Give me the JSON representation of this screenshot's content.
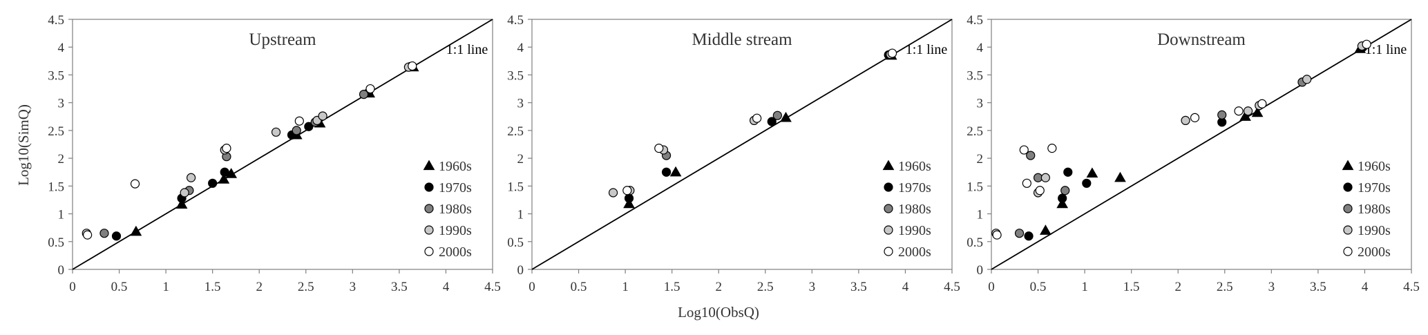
{
  "figure": {
    "xlabel": "Log10(ObsQ)",
    "ylabel": "Log10(SimQ)"
  },
  "legend": [
    {
      "label": "1960s",
      "marker": "triangle",
      "fill": "#000000"
    },
    {
      "label": "1970s",
      "marker": "circle",
      "fill": "#000000"
    },
    {
      "label": "1980s",
      "marker": "circle",
      "fill": "#808080"
    },
    {
      "label": "1990s",
      "marker": "circle",
      "fill": "#c8c8c8"
    },
    {
      "label": "2000s",
      "marker": "circle",
      "fill": "#ffffff"
    }
  ],
  "chart_data": [
    {
      "type": "scatter",
      "title": "Upstream",
      "xlim": [
        0,
        4.5
      ],
      "ylim": [
        0,
        4.5
      ],
      "xticks": [
        "0",
        "0.5",
        "1",
        "1.5",
        "2",
        "2.5",
        "3",
        "3.5",
        "4",
        "4.5"
      ],
      "yticks": [
        "0",
        "0.5",
        "1",
        "1.5",
        "2",
        "2.5",
        "3",
        "3.5",
        "4",
        "4.5"
      ],
      "reference_line": "1:1 line",
      "grid": false,
      "legend_position": "bottom-right",
      "series": [
        {
          "name": "1960s",
          "points": [
            [
              0.68,
              0.68
            ],
            [
              1.17,
              1.17
            ],
            [
              1.62,
              1.62
            ],
            [
              1.7,
              1.72
            ],
            [
              2.4,
              2.42
            ],
            [
              2.65,
              2.63
            ],
            [
              3.18,
              3.17
            ],
            [
              3.65,
              3.64
            ]
          ]
        },
        {
          "name": "1970s",
          "points": [
            [
              0.47,
              0.6
            ],
            [
              1.17,
              1.28
            ],
            [
              1.5,
              1.55
            ],
            [
              1.63,
              1.75
            ],
            [
              2.35,
              2.42
            ],
            [
              2.53,
              2.57
            ],
            [
              3.17,
              3.18
            ]
          ]
        },
        {
          "name": "1980s",
          "points": [
            [
              0.34,
              0.65
            ],
            [
              1.25,
              1.42
            ],
            [
              1.65,
              2.03
            ],
            [
              2.4,
              2.5
            ],
            [
              2.6,
              2.65
            ],
            [
              3.12,
              3.15
            ],
            [
              3.62,
              3.65
            ]
          ]
        },
        {
          "name": "1990s",
          "points": [
            [
              0.15,
              0.65
            ],
            [
              1.2,
              1.38
            ],
            [
              1.27,
              1.65
            ],
            [
              1.63,
              2.15
            ],
            [
              2.18,
              2.47
            ],
            [
              2.62,
              2.68
            ],
            [
              2.68,
              2.76
            ],
            [
              3.6,
              3.64
            ]
          ]
        },
        {
          "name": "2000s",
          "points": [
            [
              0.16,
              0.62
            ],
            [
              0.67,
              1.54
            ],
            [
              1.65,
              2.18
            ],
            [
              2.43,
              2.67
            ],
            [
              3.19,
              3.25
            ],
            [
              3.64,
              3.66
            ]
          ]
        }
      ]
    },
    {
      "type": "scatter",
      "title": "Middle stream",
      "xlim": [
        0,
        4.5
      ],
      "ylim": [
        0,
        4.5
      ],
      "xticks": [
        "0",
        "0.5",
        "1",
        "1.5",
        "2",
        "2.5",
        "3",
        "3.5",
        "4",
        "4.5"
      ],
      "yticks": [
        "0",
        "0.5",
        "1",
        "1.5",
        "2",
        "2.5",
        "3",
        "3.5",
        "4",
        "4.5"
      ],
      "reference_line": "1:1 line",
      "grid": false,
      "legend_position": "bottom-right",
      "series": [
        {
          "name": "1960s",
          "points": [
            [
              1.04,
              1.18
            ],
            [
              1.54,
              1.75
            ],
            [
              2.72,
              2.73
            ],
            [
              3.85,
              3.85
            ]
          ]
        },
        {
          "name": "1970s",
          "points": [
            [
              1.04,
              1.28
            ],
            [
              1.44,
              1.75
            ],
            [
              2.57,
              2.66
            ],
            [
              3.82,
              3.86
            ]
          ]
        },
        {
          "name": "1980s",
          "points": [
            [
              1.44,
              2.05
            ],
            [
              2.63,
              2.77
            ]
          ]
        },
        {
          "name": "1990s",
          "points": [
            [
              0.87,
              1.38
            ],
            [
              1.05,
              1.42
            ],
            [
              1.41,
              2.15
            ],
            [
              2.38,
              2.68
            ],
            [
              3.84,
              3.87
            ]
          ]
        },
        {
          "name": "2000s",
          "points": [
            [
              1.02,
              1.42
            ],
            [
              1.36,
              2.18
            ],
            [
              2.41,
              2.72
            ],
            [
              3.86,
              3.89
            ]
          ]
        }
      ]
    },
    {
      "type": "scatter",
      "title": "Downstream",
      "xlim": [
        0,
        4.5
      ],
      "ylim": [
        0,
        4.5
      ],
      "xticks": [
        "0",
        "0.5",
        "1",
        "1.5",
        "2",
        "2.5",
        "3",
        "3.5",
        "4",
        "4.5"
      ],
      "yticks": [
        "0",
        "0.5",
        "1",
        "1.5",
        "2",
        "2.5",
        "3",
        "3.5",
        "4",
        "4.5"
      ],
      "reference_line": "1:1 line",
      "grid": false,
      "legend_position": "bottom-right",
      "series": [
        {
          "name": "1960s",
          "points": [
            [
              0.58,
              0.7
            ],
            [
              0.76,
              1.18
            ],
            [
              1.08,
              1.73
            ],
            [
              1.38,
              1.65
            ],
            [
              2.72,
              2.75
            ],
            [
              2.85,
              2.82
            ],
            [
              3.95,
              3.97
            ]
          ]
        },
        {
          "name": "1970s",
          "points": [
            [
              0.4,
              0.6
            ],
            [
              0.76,
              1.28
            ],
            [
              0.82,
              1.75
            ],
            [
              1.02,
              1.55
            ],
            [
              2.47,
              2.65
            ],
            [
              3.98,
              4.0
            ]
          ]
        },
        {
          "name": "1980s",
          "points": [
            [
              0.3,
              0.65
            ],
            [
              0.42,
              2.05
            ],
            [
              0.5,
              1.65
            ],
            [
              0.79,
              1.42
            ],
            [
              2.47,
              2.78
            ],
            [
              3.33,
              3.37
            ]
          ]
        },
        {
          "name": "1990s",
          "points": [
            [
              0.05,
              0.65
            ],
            [
              0.5,
              1.38
            ],
            [
              0.58,
              1.65
            ],
            [
              2.08,
              2.68
            ],
            [
              2.75,
              2.85
            ],
            [
              2.87,
              2.95
            ],
            [
              3.38,
              3.42
            ],
            [
              3.97,
              4.02
            ]
          ]
        },
        {
          "name": "2000s",
          "points": [
            [
              0.06,
              0.62
            ],
            [
              0.35,
              2.15
            ],
            [
              0.38,
              1.55
            ],
            [
              0.65,
              2.18
            ],
            [
              0.52,
              1.42
            ],
            [
              2.18,
              2.73
            ],
            [
              2.65,
              2.85
            ],
            [
              2.9,
              2.98
            ],
            [
              4.02,
              4.05
            ]
          ]
        }
      ]
    }
  ]
}
